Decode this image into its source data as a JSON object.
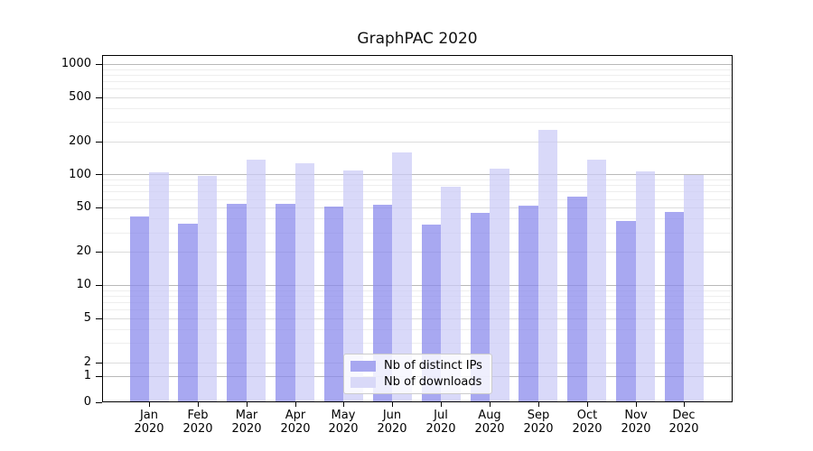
{
  "chart_data": {
    "type": "bar",
    "title": "GraphPAC 2020",
    "xlabel": "",
    "ylabel": "",
    "year": "2020",
    "categories": [
      "Jan",
      "Feb",
      "Mar",
      "Apr",
      "May",
      "Jun",
      "Jul",
      "Aug",
      "Sep",
      "Oct",
      "Nov",
      "Dec"
    ],
    "series": [
      {
        "name": "Nb of distinct IPs",
        "color": "#a7a7f0",
        "values": [
          42,
          36,
          54,
          54,
          51,
          53,
          35,
          45,
          52,
          63,
          38,
          46
        ]
      },
      {
        "name": "Nb of downloads",
        "color": "#d9d9f8",
        "values": [
          105,
          98,
          136,
          126,
          109,
          158,
          78,
          114,
          255,
          137,
          107,
          100
        ]
      }
    ],
    "yscale": "symlog",
    "y_ticks": [
      0,
      1,
      2,
      5,
      10,
      20,
      50,
      100,
      200,
      500,
      1000
    ],
    "ylim": [
      0,
      1100
    ],
    "grid": "horizontal",
    "legend_position": "lower center",
    "colors": {
      "major_grid": "#b9b9b9",
      "mid_grid": "#dcdcdc",
      "minor_grid": "#eeeeee",
      "axis": "#000000",
      "background": "#ffffff"
    }
  }
}
